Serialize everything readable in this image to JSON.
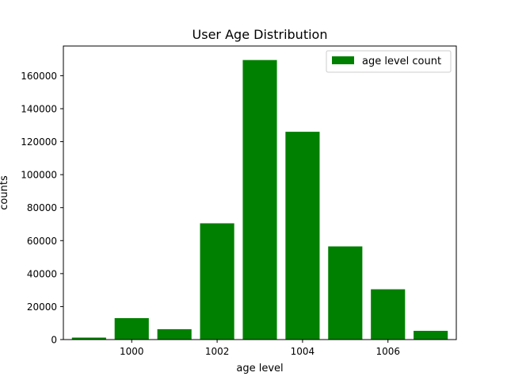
{
  "chart_data": {
    "type": "bar",
    "title": "User Age Distribution",
    "xlabel": "age level",
    "ylabel": "counts",
    "x": [
      999,
      1000,
      1001,
      1002,
      1003,
      1004,
      1005,
      1006,
      1007
    ],
    "series": [
      {
        "name": "age level count",
        "values": [
          1200,
          13000,
          6300,
          70500,
          169500,
          126000,
          56500,
          30500,
          5300
        ],
        "color": "#008000"
      }
    ],
    "xlim": [
      998.4,
      1007.6
    ],
    "ylim": [
      0,
      178000
    ],
    "xticks": [
      1000,
      1002,
      1004,
      1006
    ],
    "yticks": [
      0,
      20000,
      40000,
      60000,
      80000,
      100000,
      120000,
      140000,
      160000
    ],
    "legend_position": "top-right",
    "grid": false
  }
}
